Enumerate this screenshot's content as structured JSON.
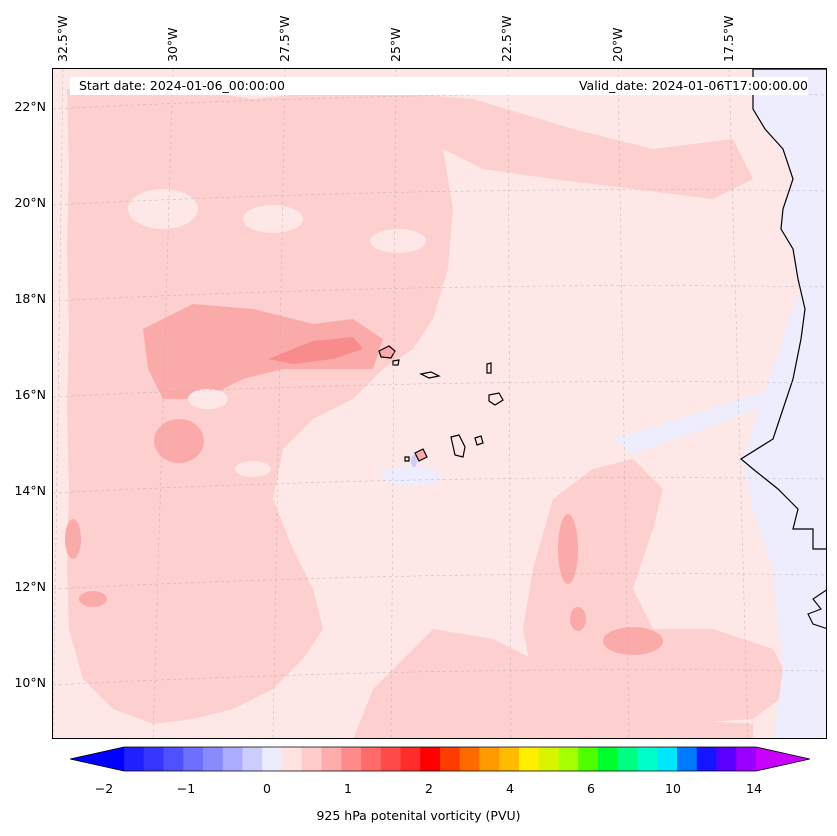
{
  "header": {
    "start_date": "Start date: 2024-01-06_00:00:00",
    "valid_date": "Valid_date: 2024-01-06T17:00:00.00"
  },
  "map": {
    "longitude_labels": [
      "32.5°W",
      "30°W",
      "27.5°W",
      "25°W",
      "22.5°W",
      "20°W",
      "17.5°W"
    ],
    "latitude_labels": [
      "22°N",
      "20°N",
      "18°N",
      "16°N",
      "14°N",
      "12°N",
      "10°N"
    ],
    "colors": {
      "background": "#fde7e7",
      "light_pink": "#fdcfcf",
      "medium_pink": "#fbaaaa",
      "dark_pink": "#f88c8c",
      "light_blue": "#ededfd",
      "coastline": "#000000"
    }
  },
  "colorbar": {
    "label": "925 hPa potenital vorticity (PVU)",
    "tick_labels": [
      "−2",
      "−1",
      "0",
      "1",
      "2",
      "4",
      "6",
      "10",
      "14"
    ],
    "colors": [
      "#2020ff",
      "#3636ff",
      "#5050ff",
      "#6e6eff",
      "#8a8aff",
      "#ababff",
      "#cccdfe",
      "#ececff",
      "#ffe2e2",
      "#ffcbcb",
      "#ffacac",
      "#ff8b8b",
      "#ff6a6a",
      "#ff4a4a",
      "#ff2c2c",
      "#ff0000",
      "#ff3c00",
      "#ff6a00",
      "#ff9900",
      "#ffbb00",
      "#ffee00",
      "#d8f400",
      "#a6ff00",
      "#4fff00",
      "#00ff2a",
      "#00ff80",
      "#00ffc8",
      "#00e6ff",
      "#007bff",
      "#1515ff",
      "#5b00ff",
      "#9a00ff"
    ],
    "under_color": "#0000ff",
    "over_color": "#ca00ff"
  }
}
